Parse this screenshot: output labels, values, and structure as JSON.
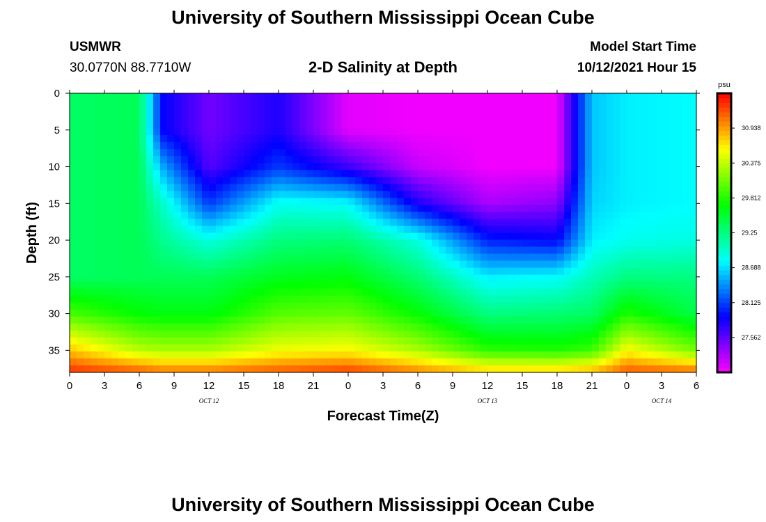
{
  "header": {
    "title": "University of Southern Mississippi Ocean Cube",
    "station_name": "USMWR",
    "station_coords": "30.0770N  88.7710W",
    "plot_title": "2-D Salinity at Depth",
    "start_label": "Model Start Time",
    "start_value": "10/12/2021 Hour 15"
  },
  "footer": {
    "title": "University of Southern Mississippi Ocean Cube"
  },
  "chart_data": {
    "type": "heatmap",
    "title": "2-D Salinity at Depth",
    "xlabel": "Forecast Time(Z)",
    "ylabel": "Depth (ft)",
    "x_hours": [
      0,
      54
    ],
    "ylim": [
      0,
      38
    ],
    "y_inverted": true,
    "x_tick_labels": [
      "0",
      "3",
      "6",
      "9",
      "12",
      "15",
      "18",
      "21",
      "0",
      "3",
      "6",
      "9",
      "12",
      "15",
      "18",
      "21",
      "0",
      "3",
      "6"
    ],
    "y_ticks": [
      0,
      5,
      10,
      15,
      20,
      25,
      30,
      35
    ],
    "date_labels": [
      {
        "text": "OCT 12",
        "hour": 12
      },
      {
        "text": "OCT 13",
        "hour": 36
      },
      {
        "text": "OCT 14",
        "hour": 51
      }
    ],
    "colorbar": {
      "unit": "psu",
      "min": 27.0,
      "max": 31.5,
      "ticks": [
        30.938,
        30.375,
        29.812,
        29.25,
        28.688,
        28.125,
        27.562
      ]
    },
    "depth_grid": [
      0,
      5,
      10,
      15,
      20,
      25,
      30,
      35,
      38
    ],
    "time_samples": [
      {
        "hour": 0,
        "values": [
          29.35,
          29.35,
          29.35,
          29.35,
          29.35,
          29.35,
          29.95,
          30.8,
          31.35
        ]
      },
      {
        "hour": 6,
        "values": [
          29.4,
          29.4,
          29.4,
          29.4,
          29.4,
          29.4,
          29.7,
          30.35,
          31.2
        ]
      },
      {
        "hour": 8,
        "values": [
          27.9,
          27.9,
          28.5,
          29.0,
          29.2,
          29.4,
          29.65,
          30.3,
          31.1
        ]
      },
      {
        "hour": 12,
        "values": [
          27.5,
          27.5,
          27.6,
          28.1,
          28.9,
          29.4,
          29.65,
          30.3,
          31.1
        ]
      },
      {
        "hour": 18,
        "values": [
          27.8,
          27.8,
          28.1,
          28.85,
          29.25,
          29.6,
          30.0,
          30.55,
          31.2
        ]
      },
      {
        "hour": 24,
        "values": [
          27.1,
          27.1,
          27.7,
          28.8,
          29.3,
          29.65,
          30.05,
          30.6,
          31.3
        ]
      },
      {
        "hour": 30,
        "values": [
          27.05,
          27.05,
          27.2,
          27.8,
          28.9,
          29.3,
          29.7,
          30.3,
          31.05
        ]
      },
      {
        "hour": 36,
        "values": [
          27.05,
          27.05,
          27.05,
          27.3,
          28.0,
          28.75,
          29.25,
          29.85,
          30.8
        ]
      },
      {
        "hour": 42,
        "values": [
          27.05,
          27.05,
          27.05,
          27.4,
          27.9,
          28.8,
          29.3,
          29.8,
          30.8
        ]
      },
      {
        "hour": 45,
        "values": [
          28.6,
          28.6,
          28.6,
          28.65,
          28.75,
          29.05,
          29.35,
          29.9,
          30.9
        ]
      },
      {
        "hour": 48,
        "values": [
          28.75,
          28.75,
          28.75,
          28.75,
          28.85,
          29.25,
          29.8,
          30.6,
          31.2
        ]
      },
      {
        "hour": 54,
        "values": [
          28.8,
          28.8,
          28.8,
          28.8,
          28.9,
          29.25,
          29.45,
          30.1,
          31.15
        ]
      }
    ]
  }
}
